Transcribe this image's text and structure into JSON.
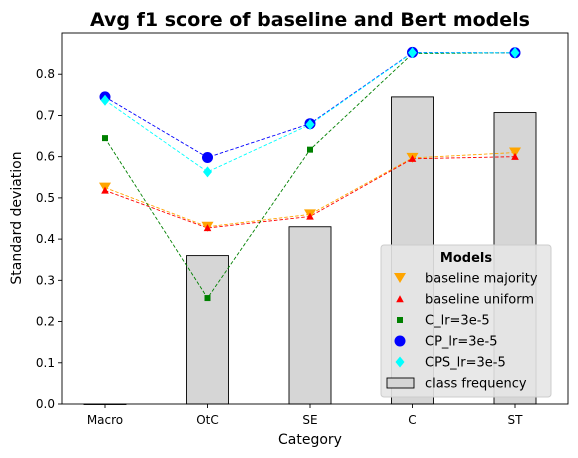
{
  "chart_data": {
    "type": "bar",
    "title": "Avg f1 score of baseline and Bert models",
    "xlabel": "Category",
    "ylabel": "Standard deviation",
    "categories": [
      "Macro",
      "OtC",
      "SE",
      "C",
      "ST"
    ],
    "ylim": [
      0,
      0.9
    ],
    "yticks": [
      0.0,
      0.1,
      0.2,
      0.3,
      0.4,
      0.5,
      0.6,
      0.7,
      0.8
    ],
    "ytick_labels": [
      "0.0",
      "0.1",
      "0.2",
      "0.3",
      "0.4",
      "0.5",
      "0.6",
      "0.7",
      "0.8"
    ],
    "grid": false,
    "legend": {
      "title": "Models",
      "placement": "lower-right"
    },
    "bars": {
      "name": "class frequency",
      "values": [
        0.0,
        0.36,
        0.43,
        0.745,
        0.707
      ],
      "color": "#d6d6d6",
      "edge_color": "#000000"
    },
    "series": [
      {
        "name": "baseline majority",
        "values": [
          0.525,
          0.43,
          0.46,
          0.597,
          0.61
        ],
        "color": "#ffa500",
        "marker": "triangle-down"
      },
      {
        "name": "baseline uniform",
        "values": [
          0.518,
          0.427,
          0.455,
          0.595,
          0.6
        ],
        "color": "#ff0000",
        "marker": "triangle-up"
      },
      {
        "name": "C_lr=3e-5",
        "values": [
          0.645,
          0.257,
          0.617,
          0.85,
          0.852
        ],
        "color": "#008000",
        "marker": "square"
      },
      {
        "name": "CP_lr=3e-5",
        "values": [
          0.745,
          0.598,
          0.68,
          0.853,
          0.852
        ],
        "color": "#0000ff",
        "marker": "circle"
      },
      {
        "name": "CPS_lr=3e-5",
        "values": [
          0.737,
          0.563,
          0.678,
          0.852,
          0.852
        ],
        "color": "#00ffff",
        "marker": "diamond"
      }
    ]
  }
}
